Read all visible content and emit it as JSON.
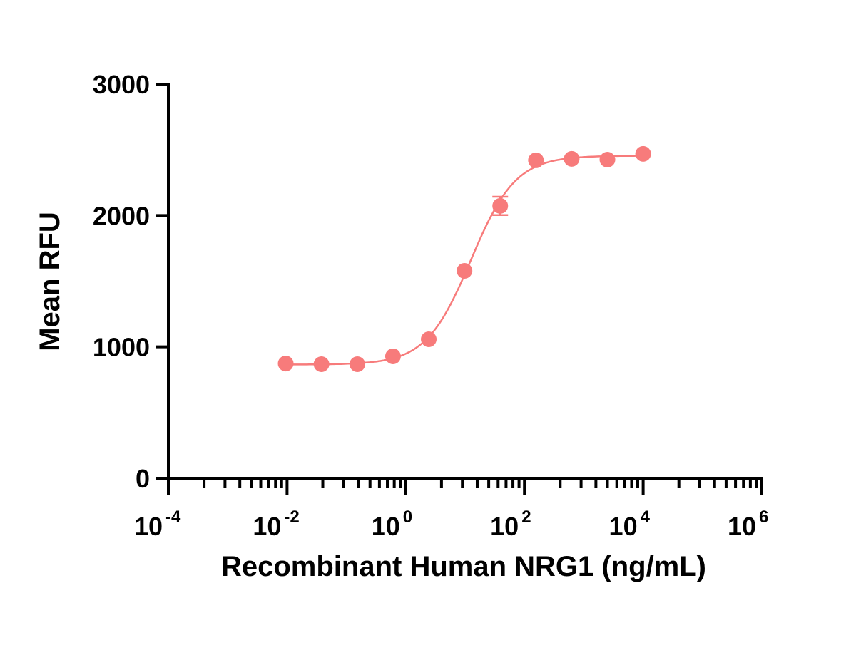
{
  "chart_data": {
    "type": "scatter",
    "title": "",
    "xlabel": "Recombinant Human NRG1 (ng/mL)",
    "ylabel": "Mean RFU",
    "xscale": "log",
    "xlim_log10": [
      -4,
      6
    ],
    "ylim": [
      0,
      3000
    ],
    "x_tick_exponents": [
      -4,
      -2,
      0,
      2,
      4,
      6
    ],
    "x_tick_base": "10",
    "y_ticks": [
      0,
      1000,
      2000,
      3000
    ],
    "grid": false,
    "legend": "none",
    "color": "#f77b7b",
    "series": [
      {
        "name": "NRG1",
        "x": [
          0.0095,
          0.038,
          0.153,
          0.61,
          2.44,
          9.77,
          39.06,
          156.25,
          625,
          2500,
          10000
        ],
        "y": [
          873,
          868,
          868,
          928,
          1058,
          1579,
          2073,
          2420,
          2431,
          2425,
          2469
        ],
        "y_err": [
          0,
          0,
          0,
          0,
          0,
          0,
          70,
          0,
          0,
          0,
          0
        ]
      }
    ],
    "fit": {
      "model": "4PL",
      "bottom": 865,
      "top": 2455,
      "ec50": 12.5,
      "hill": 1.15
    }
  }
}
